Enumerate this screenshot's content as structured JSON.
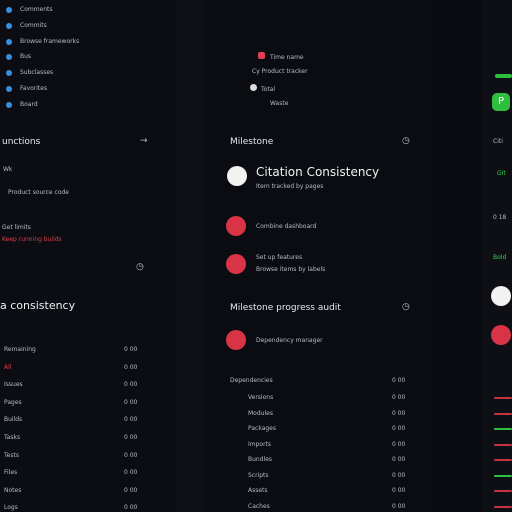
{
  "sidebar": {
    "nav": [
      "Comments",
      "Commits",
      "Browse frameworks",
      "Bus",
      "Subclasses",
      "Favorites",
      "Board"
    ],
    "functions_title": "unctions",
    "functions_item": "Wk",
    "functions_note": "Product source code",
    "limits_title": "Get limits",
    "limits_note": "Keep running builds",
    "consistency_title": "a consistency",
    "table": [
      [
        "Remaining",
        "0 00"
      ],
      [
        "All",
        "0 00"
      ],
      [
        "Issues",
        "0 00"
      ],
      [
        "Pages",
        "0 00"
      ],
      [
        "Builds",
        "0 00"
      ],
      [
        "Tasks",
        "0 00"
      ],
      [
        "Tests",
        "0 00"
      ],
      [
        "Files",
        "0 00"
      ],
      [
        "Notes",
        "0 00"
      ],
      [
        "Logs",
        "0 00"
      ]
    ]
  },
  "main": {
    "menu": [
      "Time name",
      "Cy Product tracker",
      "Total",
      "Waste"
    ],
    "milestone_title": "Milestone",
    "items": [
      {
        "title": "Citation Consistency",
        "note": "Item tracked by pages"
      },
      {
        "title": "Combine dashboard"
      },
      {
        "title": "Set up features",
        "note": "Browse items by labels"
      }
    ],
    "progress_title": "Milestone progress audit",
    "progress_item": "Dependency manager",
    "deps_header": [
      "Dependencies",
      "0 00"
    ],
    "deps": [
      [
        "Versions",
        "0 00"
      ],
      [
        "Modules",
        "0 00"
      ],
      [
        "Packages",
        "0 00"
      ],
      [
        "Imports",
        "0 00"
      ],
      [
        "Bundles",
        "0 00"
      ],
      [
        "Scripts",
        "0 00"
      ],
      [
        "Assets",
        "0 00"
      ],
      [
        "Caches",
        "0 00"
      ]
    ]
  },
  "right": {
    "pill": "P",
    "label": "Citi",
    "git": "Git",
    "count": "0 18",
    "bold": "Bold"
  }
}
